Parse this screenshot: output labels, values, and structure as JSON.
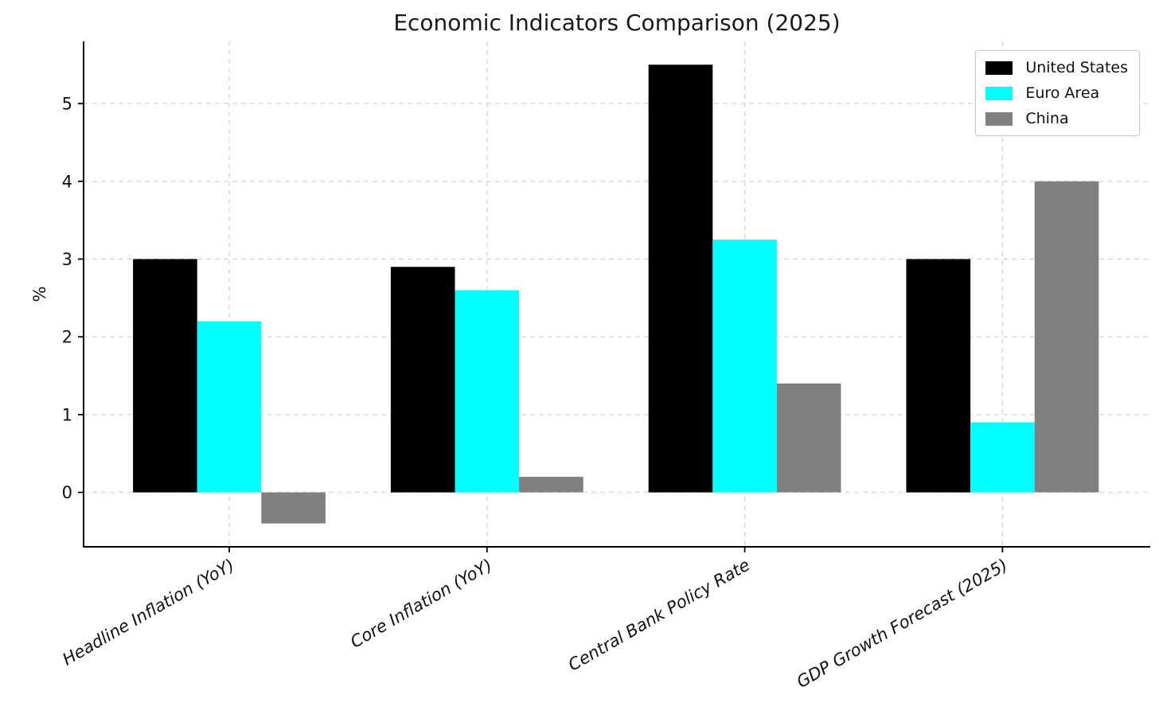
{
  "chart_data": {
    "type": "bar",
    "title": "Economic Indicators Comparison (2025)",
    "categories": [
      "Headline Inflation (YoY)",
      "Core Inflation (YoY)",
      "Central Bank Policy Rate",
      "GDP Growth Forecast (2025)"
    ],
    "series": [
      {
        "name": "United States",
        "color": "#000000",
        "values": [
          3.0,
          2.9,
          5.5,
          3.0
        ]
      },
      {
        "name": "Euro Area",
        "color": "#00ffff",
        "values": [
          2.2,
          2.6,
          3.25,
          0.9
        ]
      },
      {
        "name": "China",
        "color": "#808080",
        "values": [
          -0.4,
          0.2,
          1.4,
          4.0
        ]
      }
    ],
    "xlabel": "",
    "ylabel": "%",
    "yticks": [
      0,
      1,
      2,
      3,
      4,
      5
    ],
    "ylim": [
      -0.7,
      5.8
    ],
    "grid": "dashed both axes",
    "grid_color": "#d8d8d8",
    "legend_position": "upper right",
    "xtick_style": "italic rotated 30deg"
  }
}
